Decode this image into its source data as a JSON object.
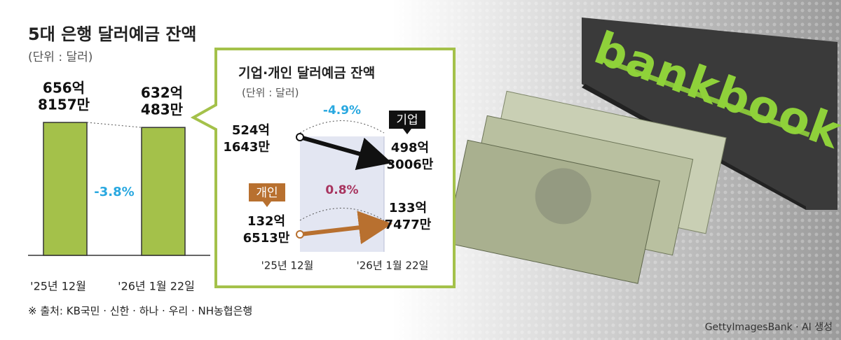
{
  "chart_data": [
    {
      "type": "bar",
      "title": "5대 은행 달러예금 잔액",
      "subtitle": "(단위 : 달러)",
      "categories": [
        "'25년 12월",
        "'26년 1월 22일"
      ],
      "values": [
        65681570000,
        63204830000
      ],
      "value_labels": [
        [
          "656억",
          "8157만"
        ],
        [
          "632억",
          "483만"
        ]
      ],
      "color": "#a4c14a",
      "annotation": "-3.8%"
    },
    {
      "type": "line",
      "title": "기업·개인 달러예금 잔액",
      "subtitle": "(단위 : 달러)",
      "categories": [
        "'25년 12월",
        "'26년 1월 22일"
      ],
      "series": [
        {
          "name": "기업",
          "color": "#111111",
          "values": [
            52416430000,
            49830060000
          ],
          "value_labels": [
            [
              "524억",
              "1643만"
            ],
            [
              "498억",
              "3006만"
            ]
          ],
          "annotation": "-4.9%"
        },
        {
          "name": "개인",
          "color": "#b8702f",
          "values": [
            13265130000,
            13374770000
          ],
          "value_labels": [
            [
              "132억",
              "6513만"
            ],
            [
              "133억",
              "7477만"
            ]
          ],
          "annotation": "0.8%"
        }
      ]
    }
  ],
  "source": "※ 출처: KB국민 · 신한 · 하나 · 우리 · NH농협은행",
  "credit": "GettyImagesBank · AI 생성",
  "image_text": "bankbook"
}
